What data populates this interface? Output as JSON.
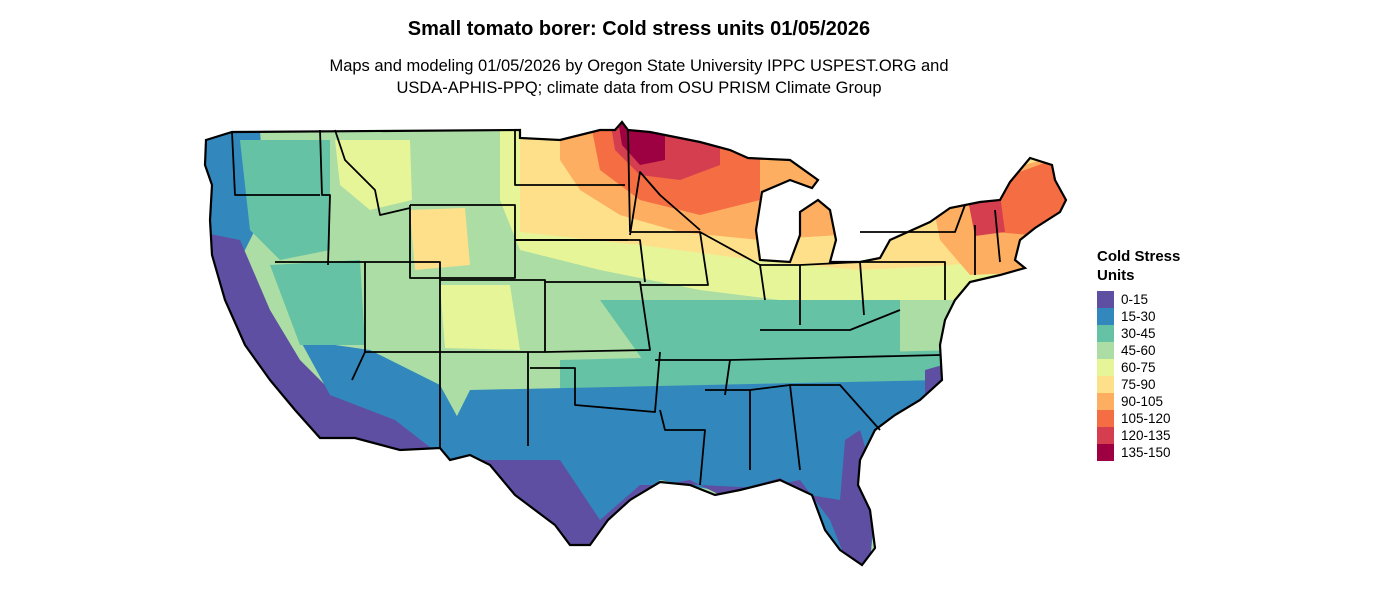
{
  "header": {
    "title": "Small tomato borer: Cold stress units 01/05/2026",
    "subtitle_line1": "Maps and modeling 01/05/2026 by Oregon State University IPPC USPEST.ORG and",
    "subtitle_line2": "USDA-APHIS-PPQ; climate data from OSU PRISM Climate Group"
  },
  "legend": {
    "title_line1": "Cold Stress",
    "title_line2": "Units",
    "items": [
      {
        "label": "0-15",
        "color": "#5e4fa2"
      },
      {
        "label": "15-30",
        "color": "#3288bd"
      },
      {
        "label": "30-45",
        "color": "#66c2a5"
      },
      {
        "label": "45-60",
        "color": "#abdda4"
      },
      {
        "label": "60-75",
        "color": "#e6f598"
      },
      {
        "label": "75-90",
        "color": "#fee08b"
      },
      {
        "label": "90-105",
        "color": "#fdae61"
      },
      {
        "label": "105-120",
        "color": "#f46d43"
      },
      {
        "label": "120-135",
        "color": "#d53e4f"
      },
      {
        "label": "135-150",
        "color": "#9e0142"
      }
    ]
  }
}
